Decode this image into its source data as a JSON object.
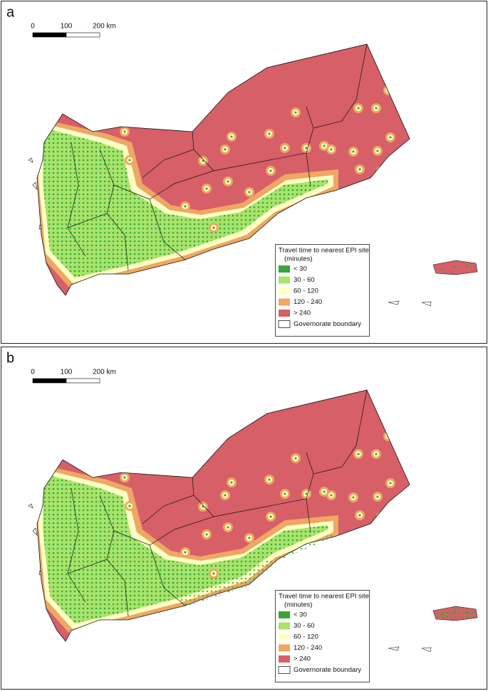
{
  "panels": [
    {
      "label": "a",
      "scale_bar": {
        "labels": [
          "0",
          "100",
          "200 km"
        ]
      },
      "legend": {
        "title": "Travel time to nearest EPI site",
        "subtitle": "(minutes)",
        "items": [
          {
            "label": "< 30",
            "color": "#3aa53a"
          },
          {
            "label": "30 - 60",
            "color": "#a8e46c"
          },
          {
            "label": "60 - 120",
            "color": "#ffffc4"
          },
          {
            "label": "120 - 240",
            "color": "#eea764"
          },
          {
            "label": "> 240",
            "color": "#d65f68"
          },
          {
            "label": "Governorate boundary",
            "color": "#ffffff"
          }
        ]
      }
    },
    {
      "label": "b",
      "scale_bar": {
        "labels": [
          "0",
          "100",
          "200 km"
        ]
      },
      "legend": {
        "title": "Travel time to nearest EPI site",
        "subtitle": "(minutes)",
        "items": [
          {
            "label": "< 30",
            "color": "#3aa53a"
          },
          {
            "label": "30 - 60",
            "color": "#a8e46c"
          },
          {
            "label": "60 - 120",
            "color": "#ffffc4"
          },
          {
            "label": "120 - 240",
            "color": "#eea764"
          },
          {
            "label": "> 240",
            "color": "#d65f68"
          },
          {
            "label": "Governorate boundary",
            "color": "#ffffff"
          }
        ]
      }
    }
  ]
}
